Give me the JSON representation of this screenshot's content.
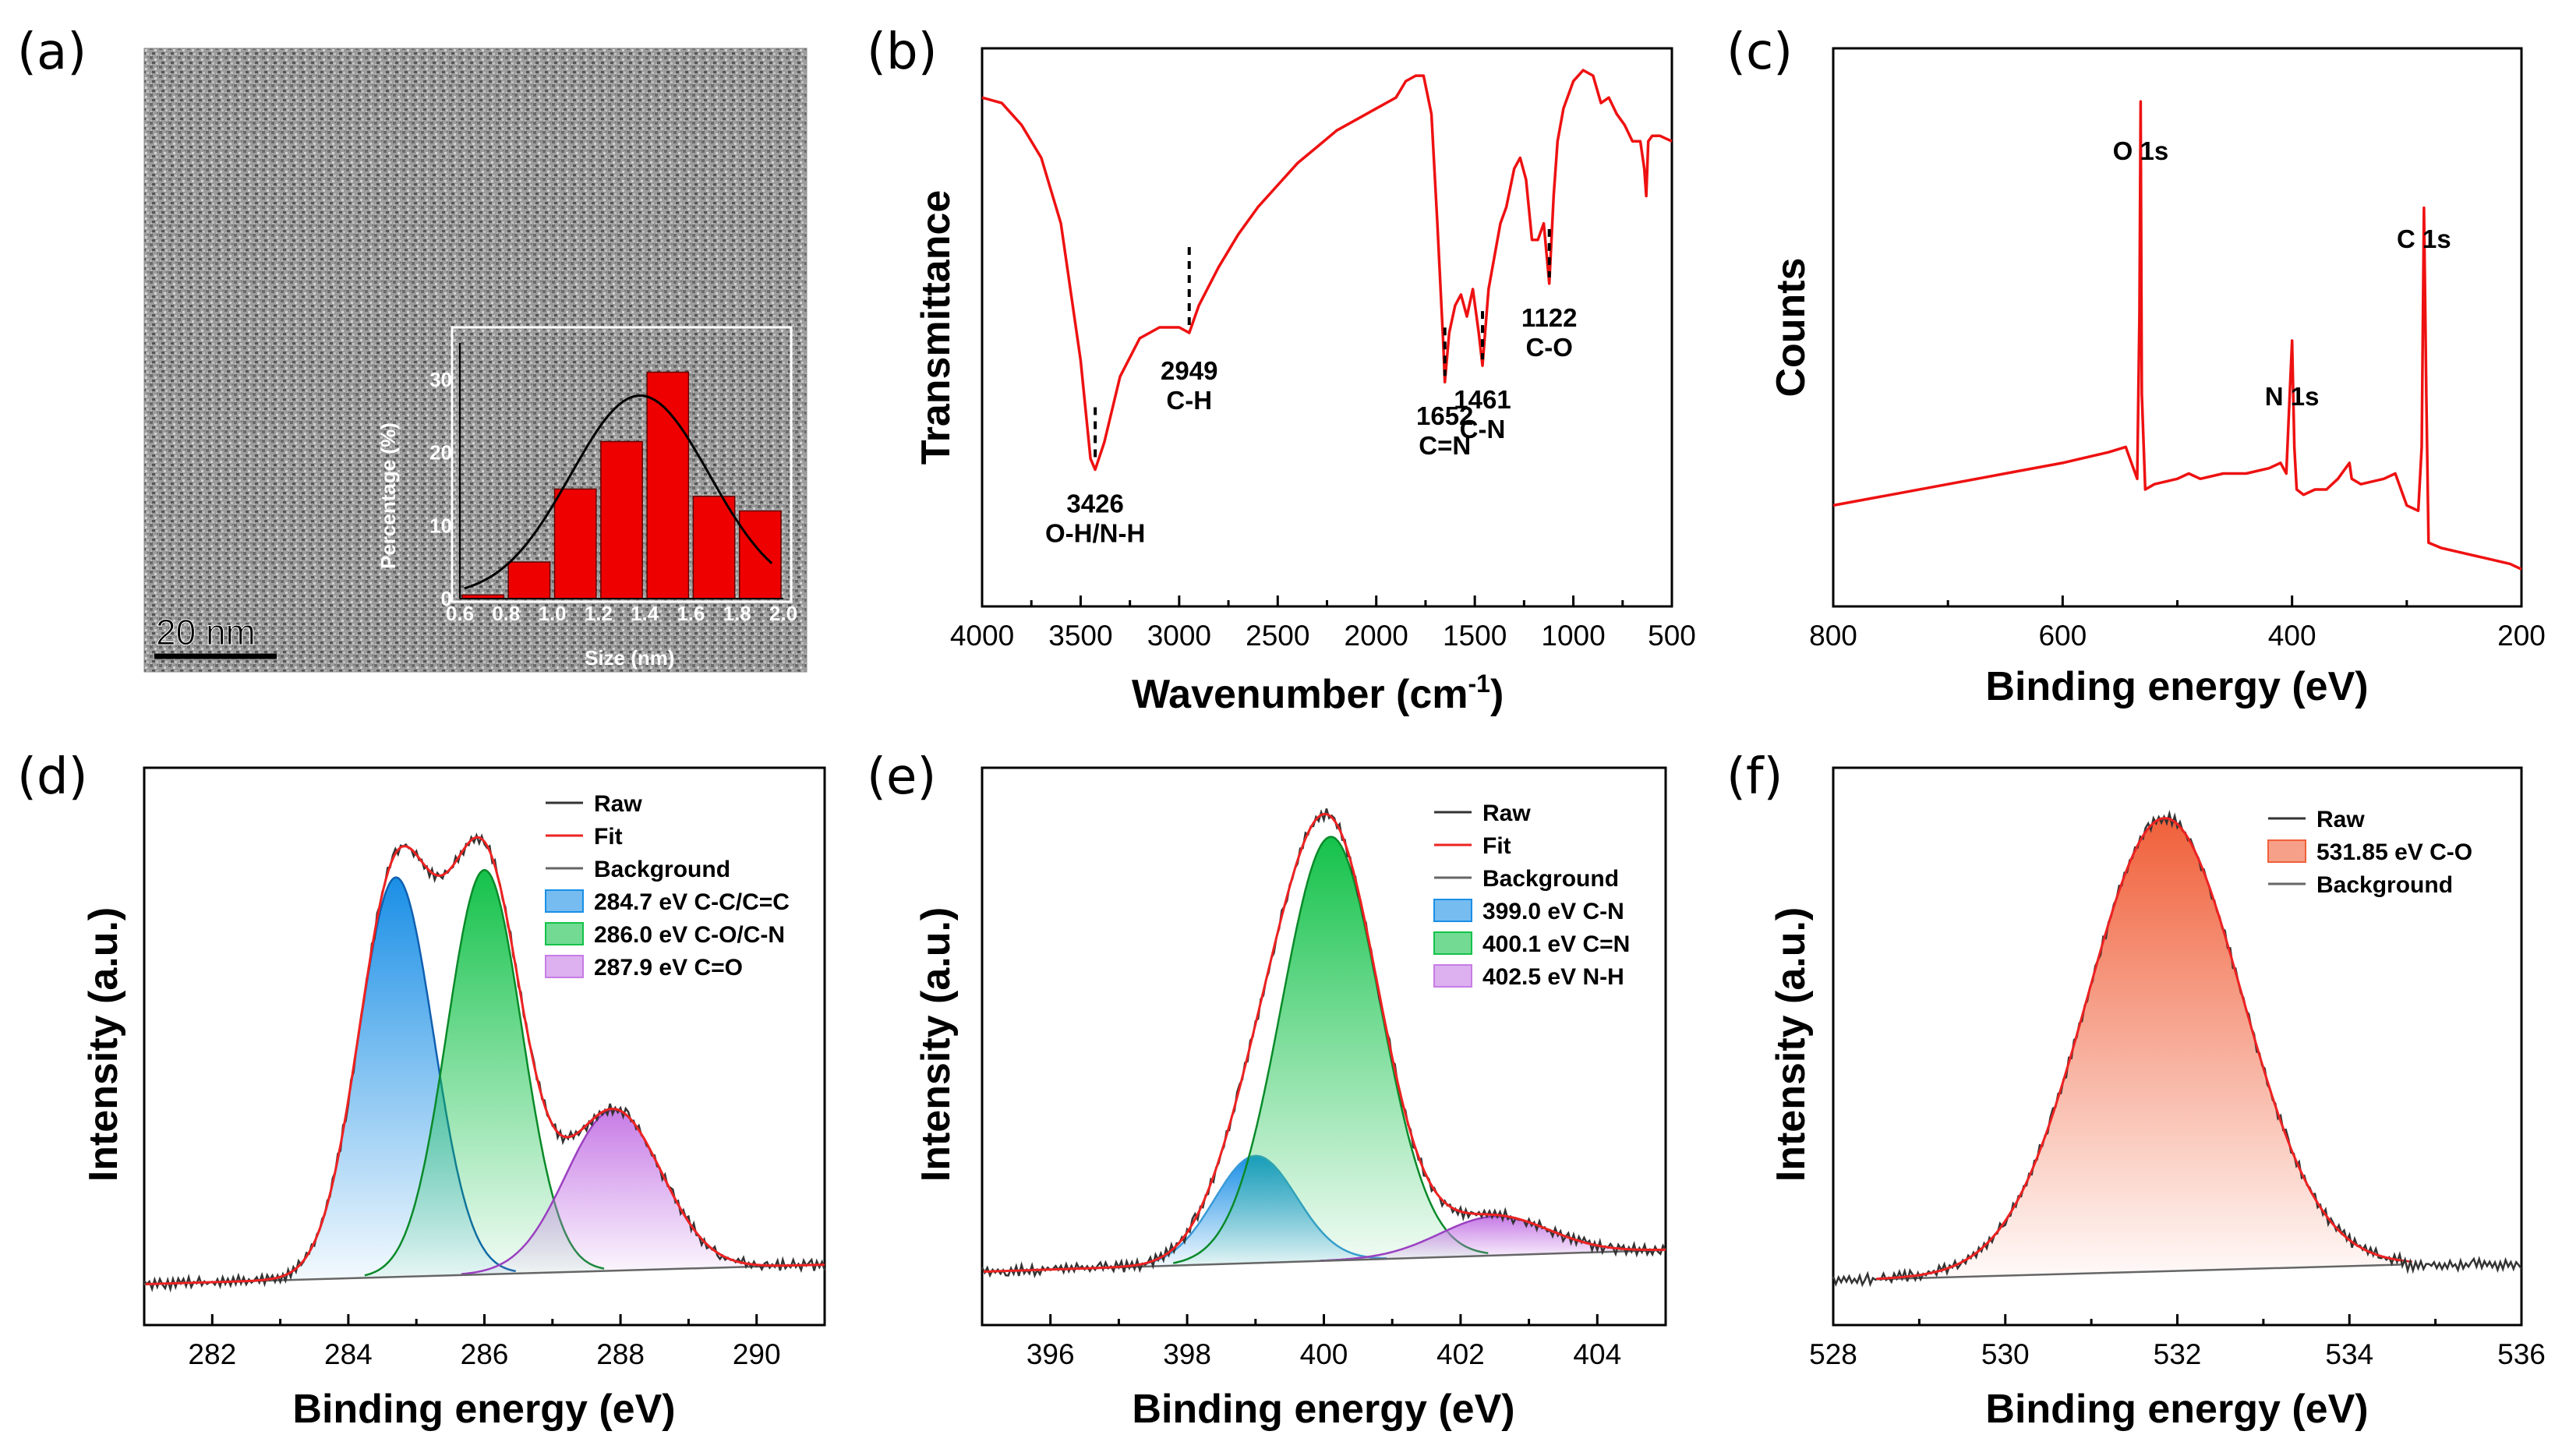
{
  "chart_data": [
    {
      "panel": "(a)",
      "type": "bar",
      "scale_bar": "20 nm",
      "inset": {
        "xlabel": "Size (nm)",
        "ylabel": "Percentage (%)",
        "xticks": [
          "0.6",
          "0.8",
          "1.0",
          "1.2",
          "1.4",
          "1.6",
          "1.8",
          "2.0"
        ],
        "yticks": [
          "0",
          "10",
          "20",
          "30"
        ],
        "bin_centers": [
          0.7,
          0.9,
          1.1,
          1.3,
          1.5,
          1.7,
          1.9
        ],
        "values": [
          0.5,
          5,
          15,
          21.5,
          31,
          14,
          12
        ],
        "fit_curve": "gaussian",
        "ylim": [
          0,
          35
        ],
        "xlim": [
          0.6,
          2.0
        ]
      }
    },
    {
      "panel": "(b)",
      "type": "line",
      "xlabel": "Wavenumber (cm",
      "xlabel_sup": "-1",
      "xlabel_close": ")",
      "ylabel": "Transmittance",
      "xlim": [
        4000,
        500
      ],
      "xticks": [
        "4000",
        "3500",
        "3000",
        "2500",
        "2000",
        "1500",
        "1000",
        "500"
      ],
      "annotations": [
        {
          "x": 3426,
          "lines": [
            "3426",
            "O-H/N-H"
          ]
        },
        {
          "x": 2949,
          "lines": [
            "2949",
            "C-H"
          ]
        },
        {
          "x": 1652,
          "lines": [
            "1652",
            "C=N"
          ]
        },
        {
          "x": 1461,
          "lines": [
            "1461",
            "C-N"
          ]
        },
        {
          "x": 1122,
          "lines": [
            "1122",
            "C-O"
          ]
        }
      ],
      "series": [
        {
          "color": "#ee1111",
          "points": [
            [
              4000,
              0.93
            ],
            [
              3900,
              0.92
            ],
            [
              3800,
              0.88
            ],
            [
              3700,
              0.82
            ],
            [
              3600,
              0.7
            ],
            [
              3500,
              0.45
            ],
            [
              3450,
              0.27
            ],
            [
              3426,
              0.25
            ],
            [
              3380,
              0.3
            ],
            [
              3300,
              0.42
            ],
            [
              3200,
              0.49
            ],
            [
              3100,
              0.51
            ],
            [
              3000,
              0.51
            ],
            [
              2949,
              0.5
            ],
            [
              2900,
              0.55
            ],
            [
              2800,
              0.62
            ],
            [
              2700,
              0.68
            ],
            [
              2600,
              0.73
            ],
            [
              2500,
              0.77
            ],
            [
              2400,
              0.81
            ],
            [
              2300,
              0.84
            ],
            [
              2200,
              0.87
            ],
            [
              2100,
              0.89
            ],
            [
              2000,
              0.91
            ],
            [
              1900,
              0.93
            ],
            [
              1850,
              0.96
            ],
            [
              1800,
              0.97
            ],
            [
              1760,
              0.97
            ],
            [
              1720,
              0.9
            ],
            [
              1690,
              0.7
            ],
            [
              1660,
              0.48
            ],
            [
              1652,
              0.41
            ],
            [
              1630,
              0.5
            ],
            [
              1600,
              0.55
            ],
            [
              1570,
              0.57
            ],
            [
              1540,
              0.53
            ],
            [
              1510,
              0.58
            ],
            [
              1480,
              0.5
            ],
            [
              1461,
              0.44
            ],
            [
              1430,
              0.58
            ],
            [
              1400,
              0.64
            ],
            [
              1370,
              0.7
            ],
            [
              1340,
              0.73
            ],
            [
              1300,
              0.8
            ],
            [
              1270,
              0.82
            ],
            [
              1240,
              0.78
            ],
            [
              1210,
              0.67
            ],
            [
              1180,
              0.67
            ],
            [
              1150,
              0.7
            ],
            [
              1122,
              0.59
            ],
            [
              1100,
              0.75
            ],
            [
              1080,
              0.85
            ],
            [
              1050,
              0.91
            ],
            [
              1000,
              0.96
            ],
            [
              950,
              0.98
            ],
            [
              900,
              0.97
            ],
            [
              860,
              0.92
            ],
            [
              820,
              0.93
            ],
            [
              780,
              0.9
            ],
            [
              740,
              0.88
            ],
            [
              700,
              0.85
            ],
            [
              660,
              0.85
            ],
            [
              640,
              0.8
            ],
            [
              630,
              0.75
            ],
            [
              620,
              0.85
            ],
            [
              600,
              0.86
            ],
            [
              560,
              0.86
            ],
            [
              500,
              0.85
            ]
          ]
        }
      ]
    },
    {
      "panel": "(c)",
      "type": "line",
      "xlabel": "Binding energy (eV)",
      "ylabel": "Counts",
      "xlim": [
        800,
        200
      ],
      "xticks": [
        "800",
        "600",
        "400",
        "200"
      ],
      "peaks": [
        {
          "label": "O 1s",
          "x": 532
        },
        {
          "label": "N 1s",
          "x": 400
        },
        {
          "label": "C 1s",
          "x": 285
        }
      ],
      "series": [
        {
          "color": "#ee1111",
          "points": [
            [
              800,
              0.19
            ],
            [
              750,
              0.21
            ],
            [
              700,
              0.23
            ],
            [
              650,
              0.25
            ],
            [
              600,
              0.27
            ],
            [
              560,
              0.29
            ],
            [
              545,
              0.3
            ],
            [
              540,
              0.27
            ],
            [
              535,
              0.24
            ],
            [
              533,
              0.55
            ],
            [
              532,
              0.95
            ],
            [
              531,
              0.4
            ],
            [
              528,
              0.22
            ],
            [
              520,
              0.23
            ],
            [
              500,
              0.24
            ],
            [
              490,
              0.25
            ],
            [
              480,
              0.24
            ],
            [
              460,
              0.25
            ],
            [
              440,
              0.25
            ],
            [
              420,
              0.26
            ],
            [
              410,
              0.27
            ],
            [
              405,
              0.25
            ],
            [
              402,
              0.4
            ],
            [
              400,
              0.5
            ],
            [
              398,
              0.3
            ],
            [
              396,
              0.22
            ],
            [
              390,
              0.21
            ],
            [
              380,
              0.22
            ],
            [
              370,
              0.22
            ],
            [
              360,
              0.24
            ],
            [
              350,
              0.27
            ],
            [
              348,
              0.24
            ],
            [
              340,
              0.23
            ],
            [
              320,
              0.24
            ],
            [
              310,
              0.25
            ],
            [
              300,
              0.19
            ],
            [
              290,
              0.18
            ],
            [
              287,
              0.3
            ],
            [
              285,
              0.75
            ],
            [
              283,
              0.4
            ],
            [
              281,
              0.12
            ],
            [
              270,
              0.11
            ],
            [
              250,
              0.1
            ],
            [
              230,
              0.09
            ],
            [
              210,
              0.08
            ],
            [
              200,
              0.07
            ]
          ]
        }
      ]
    },
    {
      "panel": "(d)",
      "type": "area",
      "xlabel": "Binding energy (eV)",
      "ylabel": "Intensity (a.u.)",
      "xlim": [
        281,
        291
      ],
      "xticks": [
        "282",
        "284",
        "286",
        "288",
        "290"
      ],
      "legend": {
        "items": [
          {
            "label": "Raw",
            "kind": "line",
            "color": "#333333"
          },
          {
            "label": "Fit",
            "kind": "line",
            "color": "#ee2222"
          },
          {
            "label": "Background",
            "kind": "line",
            "color": "#666666"
          },
          {
            "label": "284.7 eV C-C/C=C",
            "kind": "fill",
            "color": "#1a8fe6"
          },
          {
            "label": "286.0 eV C-O/C-N",
            "kind": "fill",
            "color": "#14c24a"
          },
          {
            "label": "287.9 eV C=O",
            "kind": "fill",
            "color": "#c77ce6"
          }
        ]
      },
      "background": [
        [
          281,
          0.02
        ],
        [
          291,
          0.06
        ]
      ],
      "components": [
        {
          "center": 284.7,
          "amp": 0.82,
          "sigma": 0.55,
          "color": "#1a8fe6",
          "edge": "#1060b0"
        },
        {
          "center": 286.0,
          "amp": 0.83,
          "sigma": 0.55,
          "color": "#14c24a",
          "edge": "#0a8a2a"
        },
        {
          "center": 287.9,
          "amp": 0.33,
          "sigma": 0.7,
          "color": "#c77ce6",
          "edge": "#9a40c0"
        }
      ],
      "ylim": [
        0,
        1.05
      ]
    },
    {
      "panel": "(e)",
      "type": "area",
      "xlabel": "Binding energy (eV)",
      "ylabel": "Intensity (a.u.)",
      "xlim": [
        395,
        405
      ],
      "xticks": [
        "396",
        "398",
        "400",
        "402",
        "404"
      ],
      "legend": {
        "items": [
          {
            "label": "Raw",
            "kind": "line",
            "color": "#333333"
          },
          {
            "label": "Fit",
            "kind": "line",
            "color": "#ee2222"
          },
          {
            "label": "Background",
            "kind": "line",
            "color": "#666666"
          },
          {
            "label": "399.0 eV C-N",
            "kind": "fill",
            "color": "#1a8fe6"
          },
          {
            "label": "400.1 eV C=N",
            "kind": "fill",
            "color": "#14c24a"
          },
          {
            "label": "402.5 eV N-H",
            "kind": "fill",
            "color": "#c77ce6"
          }
        ]
      },
      "background": [
        [
          396,
          0.05
        ],
        [
          405,
          0.09
        ]
      ],
      "components": [
        {
          "center": 399.0,
          "amp": 0.22,
          "sigma": 0.6,
          "color": "#1a8fe6",
          "edge": "#3a9ad8"
        },
        {
          "center": 400.1,
          "amp": 0.87,
          "sigma": 0.72,
          "color": "#14c24a",
          "edge": "#0a8a2a"
        },
        {
          "center": 402.5,
          "amp": 0.08,
          "sigma": 0.8,
          "color": "#c77ce6",
          "edge": "#9a40c0"
        }
      ],
      "ylim": [
        0,
        1.05
      ]
    },
    {
      "panel": "(f)",
      "type": "area",
      "xlabel": "Binding energy (eV)",
      "ylabel": "Intensity (a.u.)",
      "xlim": [
        528,
        536
      ],
      "xticks": [
        "528",
        "530",
        "532",
        "534",
        "536"
      ],
      "legend": {
        "items": [
          {
            "label": "Raw",
            "kind": "line",
            "color": "#333333"
          },
          {
            "label": "531.85 eV C-O",
            "kind": "fill",
            "color": "#f0603a"
          },
          {
            "label": "Background",
            "kind": "line",
            "color": "#666666"
          }
        ]
      },
      "background": [
        [
          528.5,
          0.03
        ],
        [
          534.6,
          0.06
        ]
      ],
      "components": [
        {
          "center": 531.85,
          "amp": 0.93,
          "sigma": 0.9,
          "color": "#f0603a",
          "edge": "#e02020"
        }
      ],
      "ylim": [
        0,
        1.05
      ]
    }
  ]
}
